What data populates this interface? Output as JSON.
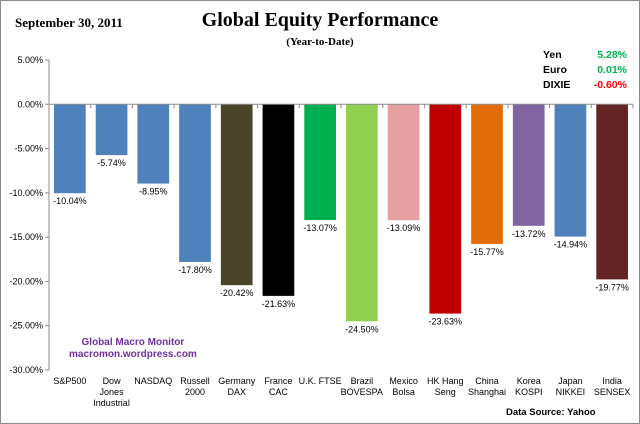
{
  "header": {
    "date": "September 30,  2011",
    "title": "Global Equity Performance",
    "subtitle": "(Year-to-Date)"
  },
  "fx": [
    {
      "label": "Yen",
      "value": "5.28%",
      "color": "#00b050"
    },
    {
      "label": "Euro",
      "value": "0.01%",
      "color": "#00b050"
    },
    {
      "label": "DIXIE",
      "value": "-0.60%",
      "color": "#ff0000"
    }
  ],
  "watermark": {
    "line1": "Global Macro Monitor",
    "line2": "macromon.wordpress.com"
  },
  "source": "Data Source:  Yahoo",
  "chart_data": {
    "type": "bar",
    "title": "Global Equity Performance",
    "subtitle": "(Year-to-Date)",
    "ylim": [
      -30,
      5
    ],
    "yticks": [
      "5.00%",
      "0.00%",
      "-5.00%",
      "-10.00%",
      "-15.00%",
      "-20.00%",
      "-25.00%",
      "-30.00%"
    ],
    "grid": false,
    "categories": [
      [
        "S&P500"
      ],
      [
        "Dow",
        "Jones",
        "Industrial"
      ],
      [
        "NASDAQ"
      ],
      [
        "Russell",
        "2000"
      ],
      [
        "Germany",
        "DAX"
      ],
      [
        "France",
        "CAC"
      ],
      [
        "U.K. FTSE"
      ],
      [
        "Brazil",
        "BOVESPA"
      ],
      [
        "Mexico",
        "Bolsa"
      ],
      [
        "HK Hang",
        "Seng"
      ],
      [
        "China",
        "Shanghai"
      ],
      [
        "Korea",
        "KOSPI"
      ],
      [
        "Japan",
        "NIKKEI"
      ],
      [
        "India",
        "SENSEX"
      ]
    ],
    "values": [
      -10.04,
      -5.74,
      -8.95,
      -17.8,
      -20.42,
      -21.63,
      -13.07,
      -24.5,
      -13.09,
      -23.63,
      -15.77,
      -13.72,
      -14.94,
      -19.77
    ],
    "data_labels": [
      "-10.04%",
      "-5.74%",
      "-8.95%",
      "-17.80%",
      "-20.42%",
      "-21.63%",
      "-13.07%",
      "-24.50%",
      "-13.09%",
      "-23.63%",
      "-15.77%",
      "-13.72%",
      "-14.94%",
      "-19.77%"
    ],
    "colors": [
      "#4f81bd",
      "#4f81bd",
      "#4f81bd",
      "#4f81bd",
      "#4a452a",
      "#000000",
      "#00b050",
      "#92d050",
      "#e6a0a0",
      "#c00000",
      "#e36c09",
      "#8064a2",
      "#4f81bd",
      "#632523"
    ]
  }
}
